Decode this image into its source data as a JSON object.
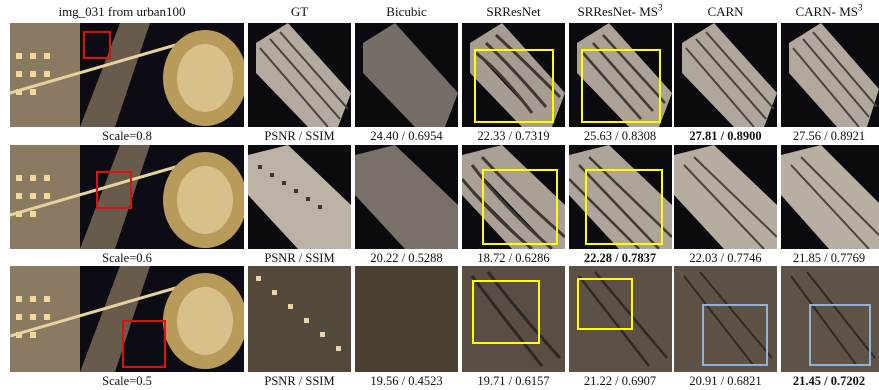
{
  "headers": [
    {
      "id": "source",
      "text": "img_031 from urban100",
      "sup": ""
    },
    {
      "id": "gt",
      "text": "GT",
      "sup": ""
    },
    {
      "id": "bicubic",
      "text": "Bicubic",
      "sup": ""
    },
    {
      "id": "srresnet",
      "text": "SRResNet",
      "sup": ""
    },
    {
      "id": "srresnet-ms3",
      "text": "SRResNet- MS",
      "sup": "3"
    },
    {
      "id": "carn",
      "text": "CARN",
      "sup": ""
    },
    {
      "id": "carn-ms3",
      "text": "CARN- MS",
      "sup": "3"
    }
  ],
  "rows": [
    {
      "scale_label": "Scale=0.8",
      "captions": [
        "PSNR / SSIM",
        "24.40 / 0.6954",
        "22.33 / 0.7319",
        "25.63 / 0.8308",
        "27.81 / 0.8900",
        "27.56 / 0.8921"
      ],
      "best_index": 4,
      "highlight_colors": [
        "",
        "",
        "yellow",
        "yellow",
        "",
        ""
      ]
    },
    {
      "scale_label": "Scale=0.6",
      "captions": [
        "PSNR / SSIM",
        "20.22 / 0.5288",
        "18.72 / 0.6286",
        "22.28 / 0.7837",
        "22.03 / 0.7746",
        "21.85 / 0.7769"
      ],
      "best_index": 3,
      "highlight_colors": [
        "",
        "",
        "yellow",
        "yellow",
        "",
        ""
      ]
    },
    {
      "scale_label": "Scale=0.5",
      "captions": [
        "PSNR / SSIM",
        "19.56 / 0.4523",
        "19.71 / 0.6157",
        "21.22 / 0.6907",
        "20.91 / 0.6821",
        "21.45 / 0.7202"
      ],
      "best_index": 5,
      "highlight_colors": [
        "",
        "",
        "yellow",
        "yellow",
        "blue",
        "blue"
      ]
    }
  ],
  "colors": {
    "yellow_box": "#ffff00",
    "blue_box": "#8fb2d8",
    "red_box": "#e01010",
    "night_sky": "#0b0b0f"
  }
}
